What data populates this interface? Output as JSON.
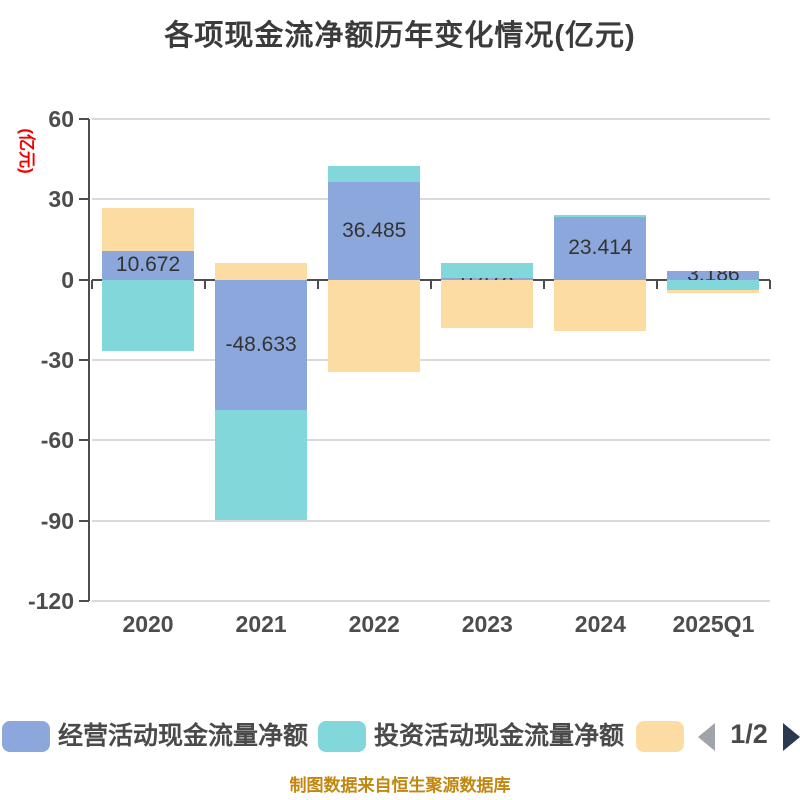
{
  "title": "各项现金流净额历年变化情况(亿元)",
  "y_axis_unit": "(亿元)",
  "footer": "制图数据来自恒生聚源数据库",
  "pagination": {
    "page": "1/2",
    "prev_icon": "left-arrow",
    "next_icon": "right-arrow"
  },
  "chart_data": {
    "type": "bar",
    "stacked": true,
    "categories": [
      "2020",
      "2021",
      "2022",
      "2023",
      "2024",
      "2025Q1"
    ],
    "series": [
      {
        "name": "经营活动现金流量净额",
        "color": "#8ba7db",
        "values": [
          10.672,
          -48.633,
          36.485,
          0.478,
          23.414,
          3.186
        ],
        "data_labels": [
          "10.672",
          "-48.633",
          "36.485",
          "0.478",
          "23.414",
          "3.186"
        ]
      },
      {
        "name": "投资活动现金流量净额",
        "color": "#82d7db",
        "values": [
          -26.7,
          -41.1,
          5.9,
          5.7,
          0.7,
          -3.9
        ]
      },
      {
        "name": "",
        "color": "#fcdca2",
        "values": [
          16.0,
          6.2,
          -34.5,
          -18.1,
          -19.0,
          -1.1
        ]
      }
    ],
    "ylim": [
      -120,
      60
    ],
    "yticks": [
      60,
      30,
      0,
      -30,
      -60,
      -90,
      -120
    ],
    "grid": true,
    "legend_position": "bottom"
  }
}
